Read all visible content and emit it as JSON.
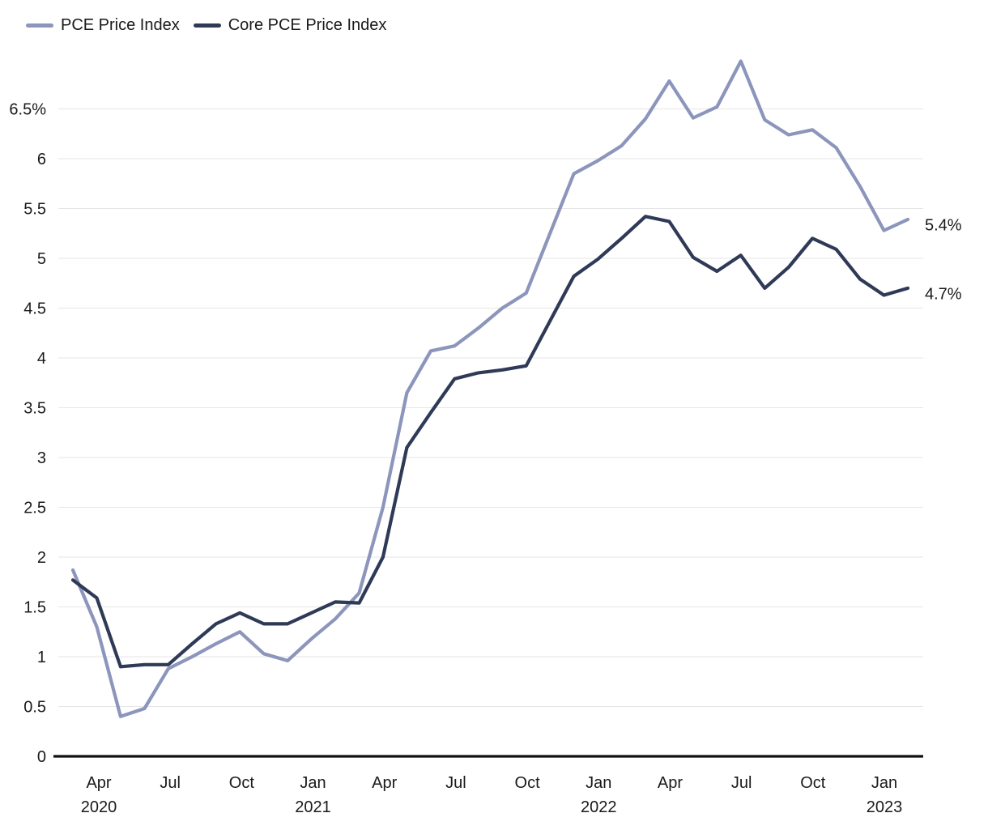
{
  "legend": {
    "items": [
      {
        "label": "PCE Price Index",
        "color": "#8C95BB"
      },
      {
        "label": "Core PCE Price Index",
        "color": "#2F3A57"
      }
    ]
  },
  "colors": {
    "pce_line": "#8C95BB",
    "core_pce_line": "#2F3A57",
    "gridline": "#E6E6E6",
    "axis": "#111111",
    "text": "#1a1a1a"
  },
  "end_labels": {
    "pce": "5.4%",
    "core": "4.7%"
  },
  "chart_data": {
    "type": "line",
    "title": "",
    "xlabel": "",
    "ylabel": "",
    "grid": true,
    "legend_position": "top-left",
    "ylim": [
      0,
      7.05
    ],
    "y_tick_labels": [
      "0",
      "0.5",
      "1",
      "1.5",
      "2",
      "2.5",
      "3",
      "3.5",
      "4",
      "4.5",
      "5",
      "5.5",
      "6",
      "6.5%"
    ],
    "x_ticks": [
      {
        "label": "Apr",
        "year": "2020"
      },
      {
        "label": "Jul",
        "year": ""
      },
      {
        "label": "Oct",
        "year": ""
      },
      {
        "label": "Jan",
        "year": "2021"
      },
      {
        "label": "Apr",
        "year": ""
      },
      {
        "label": "Jul",
        "year": ""
      },
      {
        "label": "Oct",
        "year": ""
      },
      {
        "label": "Jan",
        "year": "2022"
      },
      {
        "label": "Apr",
        "year": ""
      },
      {
        "label": "Jul",
        "year": ""
      },
      {
        "label": "Oct",
        "year": ""
      },
      {
        "label": "Jan",
        "year": "2023"
      }
    ],
    "x": [
      "Feb 2020",
      "Mar 2020",
      "Apr 2020",
      "May 2020",
      "Jun 2020",
      "Jul 2020",
      "Aug 2020",
      "Sep 2020",
      "Oct 2020",
      "Nov 2020",
      "Dec 2020",
      "Jan 2021",
      "Feb 2021",
      "Mar 2021",
      "Apr 2021",
      "May 2021",
      "Jun 2021",
      "Jul 2021",
      "Aug 2021",
      "Sep 2021",
      "Oct 2021",
      "Nov 2021",
      "Dec 2021",
      "Jan 2022",
      "Feb 2022",
      "Mar 2022",
      "Apr 2022",
      "May 2022",
      "Jun 2022",
      "Jul 2022",
      "Aug 2022",
      "Sep 2022",
      "Oct 2022",
      "Nov 2022",
      "Dec 2022",
      "Jan 2023"
    ],
    "series": [
      {
        "name": "PCE Price Index",
        "color": "#8C95BB",
        "end_label": "5.4%",
        "values": [
          1.87,
          1.3,
          0.4,
          0.48,
          0.88,
          1.0,
          1.13,
          1.25,
          1.03,
          0.96,
          1.18,
          1.38,
          1.64,
          2.5,
          3.65,
          4.07,
          4.12,
          4.3,
          4.5,
          4.65,
          5.25,
          5.85,
          5.98,
          6.13,
          6.4,
          6.78,
          6.41,
          6.52,
          6.98,
          6.39,
          6.24,
          6.29,
          6.11,
          5.72,
          5.28,
          5.39
        ]
      },
      {
        "name": "Core PCE Price Index",
        "color": "#2F3A57",
        "end_label": "4.7%",
        "values": [
          1.77,
          1.59,
          0.9,
          0.92,
          0.92,
          1.13,
          1.33,
          1.44,
          1.33,
          1.33,
          1.44,
          1.55,
          1.54,
          2.0,
          3.1,
          3.45,
          3.79,
          3.85,
          3.88,
          3.92,
          4.37,
          4.82,
          4.99,
          5.2,
          5.42,
          5.37,
          5.01,
          4.87,
          5.03,
          4.7,
          4.91,
          5.2,
          5.09,
          4.79,
          4.63,
          4.7
        ]
      }
    ]
  }
}
